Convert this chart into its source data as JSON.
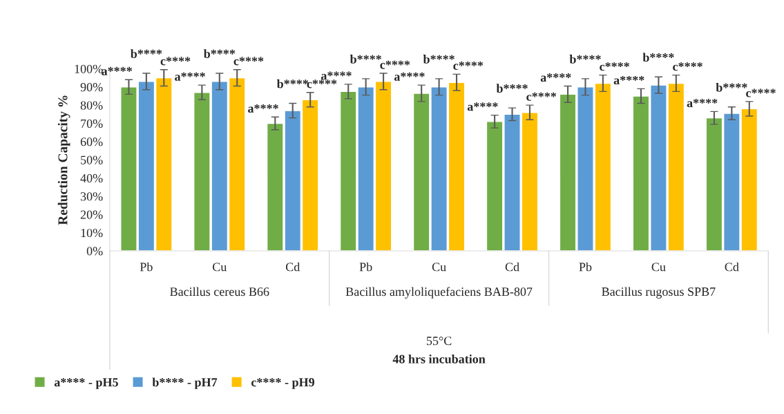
{
  "chart_data": {
    "type": "bar",
    "ylabel": "Reduction Capacity %",
    "categories": [
      "Pb",
      "Cu",
      "Cd",
      "Pb",
      "Cu",
      "Cd",
      "Pb",
      "Cu",
      "Cd"
    ],
    "annotations": [
      "Bacillus cereus B66",
      "Bacillus amyloliquefaciens BAB-807",
      "Bacillus rugosus SPB7",
      "55°C",
      "48 hrs incubation"
    ],
    "series": [
      {
        "name": "a**** - pH5",
        "color": "#70ad47",
        "values": [
          90,
          87,
          70,
          87.5,
          86.5,
          71,
          86,
          85,
          73
        ],
        "errors": [
          4,
          4,
          3.5,
          4,
          4.5,
          3.5,
          4.5,
          4,
          3.5
        ],
        "value_labels": [
          "a****",
          "a****",
          "a****",
          "a****",
          "a****",
          "a****",
          "a****",
          "a****",
          "a****"
        ]
      },
      {
        "name": "b**** - pH7",
        "color": "#5b9bd5",
        "values": [
          93,
          93,
          77,
          90,
          90,
          75,
          90,
          91,
          75.5
        ],
        "errors": [
          4.5,
          4.5,
          4,
          4.5,
          4.5,
          3.5,
          4.5,
          4.5,
          3.5
        ],
        "value_labels": [
          "b****",
          "b****",
          "b****",
          "b****",
          "b****",
          "b****",
          "b****",
          "b****",
          "b****"
        ]
      },
      {
        "name": "c**** - pH9",
        "color": "#ffc000",
        "values": [
          95,
          95,
          83,
          93,
          92.5,
          76,
          92,
          92,
          78
        ],
        "errors": [
          4.5,
          4.5,
          4,
          4.5,
          4.5,
          4,
          4.5,
          4.5,
          4
        ],
        "value_labels": [
          "c****",
          "c****",
          "c****",
          "c****",
          "c****",
          "c****",
          "c****",
          "c****",
          "c****"
        ]
      }
    ],
    "ylim": [
      0,
      100
    ],
    "yticks": [
      {
        "value": 0,
        "label": "0%"
      },
      {
        "value": 10,
        "label": "10%"
      },
      {
        "value": 20,
        "label": "20%"
      },
      {
        "value": 30,
        "label": "30%"
      },
      {
        "value": 40,
        "label": "40%"
      },
      {
        "value": 50,
        "label": "50%"
      },
      {
        "value": 60,
        "label": "60%"
      },
      {
        "value": 70,
        "label": "70%"
      },
      {
        "value": 80,
        "label": "80%"
      },
      {
        "value": 90,
        "label": "90%"
      },
      {
        "value": 100,
        "label": "100%"
      }
    ],
    "grid": false,
    "legend": "bottom left"
  }
}
